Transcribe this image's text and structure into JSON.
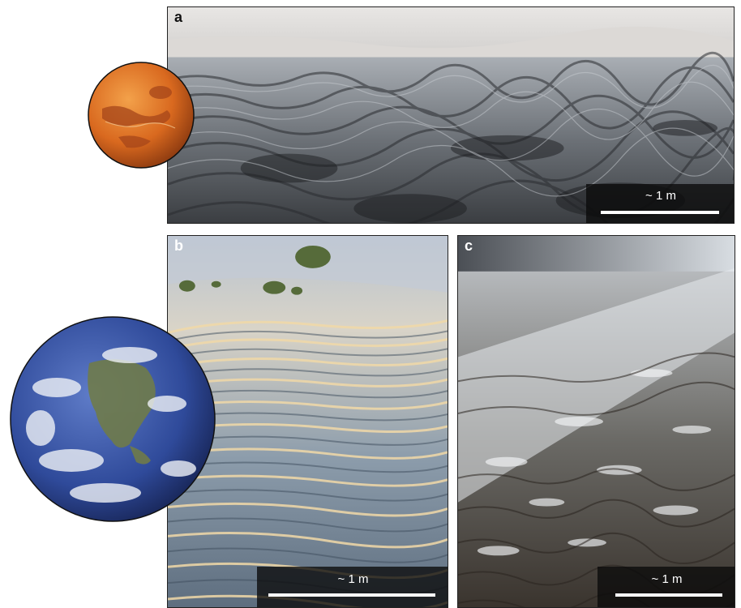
{
  "panels": {
    "a": {
      "letter": "a",
      "scale_label": "~ 1 m",
      "subject": "mars-ripples-photo",
      "letter_color": "#111111"
    },
    "b": {
      "letter": "b",
      "scale_label": "~ 1 m",
      "subject": "earth-sand-ripples-photo",
      "letter_color": "#ffffff"
    },
    "c": {
      "letter": "c",
      "scale_label": "~ 1 m",
      "subject": "earth-snow-ripples-photo",
      "letter_color": "#ffffff"
    }
  },
  "planets": [
    {
      "name": "mars-icon"
    },
    {
      "name": "earth-icon"
    }
  ],
  "colors": {
    "mars_orange": "#d9691f",
    "earth_blue": "#2f4a9a",
    "scale_box": "#111111",
    "scale_bar": "#ffffff"
  }
}
